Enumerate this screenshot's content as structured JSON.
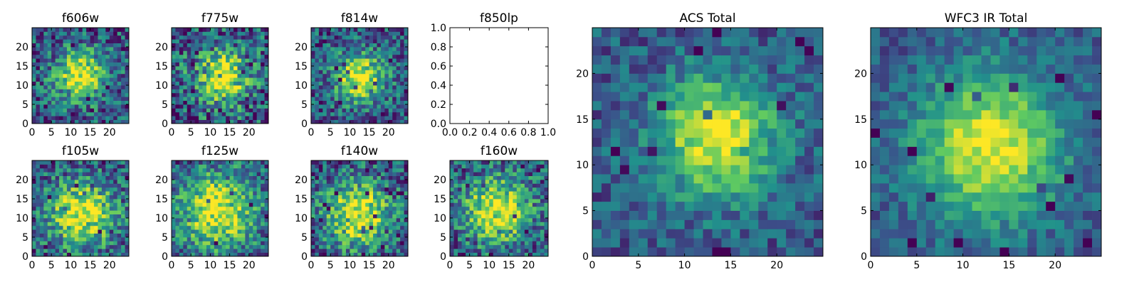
{
  "chart_data": [
    {
      "type": "heatmap",
      "title": "f606w",
      "xticks": [
        "0",
        "5",
        "10",
        "15",
        "20"
      ],
      "yticks": [
        "0",
        "5",
        "10",
        "15",
        "20"
      ],
      "xlim": [
        0,
        25
      ],
      "ylim": [
        0,
        25
      ],
      "grid": false,
      "peak": [
        12.5,
        12.5
      ],
      "spread": 4.5,
      "noise": 0.3,
      "seed": 11
    },
    {
      "type": "heatmap",
      "title": "f775w",
      "xticks": [
        "0",
        "5",
        "10",
        "15",
        "20"
      ],
      "yticks": [
        "0",
        "5",
        "10",
        "15",
        "20"
      ],
      "xlim": [
        0,
        25
      ],
      "ylim": [
        0,
        25
      ],
      "grid": false,
      "peak": [
        13,
        12
      ],
      "spread": 5,
      "noise": 0.35,
      "seed": 23
    },
    {
      "type": "heatmap",
      "title": "f814w",
      "xticks": [
        "0",
        "5",
        "10",
        "15",
        "20"
      ],
      "yticks": [
        "0",
        "5",
        "10",
        "15",
        "20"
      ],
      "xlim": [
        0,
        25
      ],
      "ylim": [
        0,
        25
      ],
      "grid": false,
      "peak": [
        12.5,
        12
      ],
      "spread": 4.5,
      "noise": 0.28,
      "seed": 37
    },
    {
      "type": "empty",
      "title": "f850lp",
      "xticks": [
        "0.0",
        "0.2",
        "0.4",
        "0.6",
        "0.8",
        "1.0"
      ],
      "yticks": [
        "0.0",
        "0.2",
        "0.4",
        "0.6",
        "0.8",
        "1.0"
      ],
      "xlim": [
        0,
        1
      ],
      "ylim": [
        0,
        1
      ]
    },
    {
      "type": "heatmap",
      "title": "f105w",
      "xticks": [
        "0",
        "5",
        "10",
        "15",
        "20"
      ],
      "yticks": [
        "0",
        "5",
        "10",
        "15",
        "20"
      ],
      "xlim": [
        0,
        25
      ],
      "ylim": [
        0,
        25
      ],
      "grid": false,
      "peak": [
        13,
        11
      ],
      "spread": 6,
      "noise": 0.3,
      "seed": 41
    },
    {
      "type": "heatmap",
      "title": "f125w",
      "xticks": [
        "0",
        "5",
        "10",
        "15",
        "20"
      ],
      "yticks": [
        "0",
        "5",
        "10",
        "15",
        "20"
      ],
      "xlim": [
        0,
        25
      ],
      "ylim": [
        0,
        25
      ],
      "grid": false,
      "peak": [
        12,
        12
      ],
      "spread": 7,
      "noise": 0.28,
      "seed": 53
    },
    {
      "type": "heatmap",
      "title": "f140w",
      "xticks": [
        "0",
        "5",
        "10",
        "15",
        "20"
      ],
      "yticks": [
        "0",
        "5",
        "10",
        "15",
        "20"
      ],
      "xlim": [
        0,
        25
      ],
      "ylim": [
        0,
        25
      ],
      "grid": false,
      "peak": [
        12,
        11
      ],
      "spread": 6,
      "noise": 0.3,
      "seed": 67
    },
    {
      "type": "heatmap",
      "title": "f160w",
      "xticks": [
        "0",
        "5",
        "10",
        "15",
        "20"
      ],
      "yticks": [
        "0",
        "5",
        "10",
        "15",
        "20"
      ],
      "xlim": [
        0,
        25
      ],
      "ylim": [
        0,
        25
      ],
      "grid": false,
      "peak": [
        12,
        12
      ],
      "spread": 6,
      "noise": 0.3,
      "seed": 79
    },
    {
      "type": "heatmap",
      "title": "ACS Total",
      "xticks": [
        "0",
        "5",
        "10",
        "15",
        "20"
      ],
      "yticks": [
        "0",
        "5",
        "10",
        "15",
        "20"
      ],
      "xlim": [
        0,
        25
      ],
      "ylim": [
        0,
        25
      ],
      "grid": false,
      "peak": [
        13.5,
        13
      ],
      "spread": 4.5,
      "noise": 0.18,
      "seed": 97
    },
    {
      "type": "heatmap",
      "title": "WFC3 IR Total",
      "xticks": [
        "0",
        "5",
        "10",
        "15",
        "20"
      ],
      "yticks": [
        "0",
        "5",
        "10",
        "15",
        "20"
      ],
      "xlim": [
        0,
        25
      ],
      "ylim": [
        0,
        25
      ],
      "grid": false,
      "peak": [
        13,
        12
      ],
      "spread": 5.5,
      "noise": 0.15,
      "seed": 131
    }
  ],
  "colormap": [
    "#440154",
    "#3b528b",
    "#21918c",
    "#5ec962",
    "#fde725"
  ]
}
